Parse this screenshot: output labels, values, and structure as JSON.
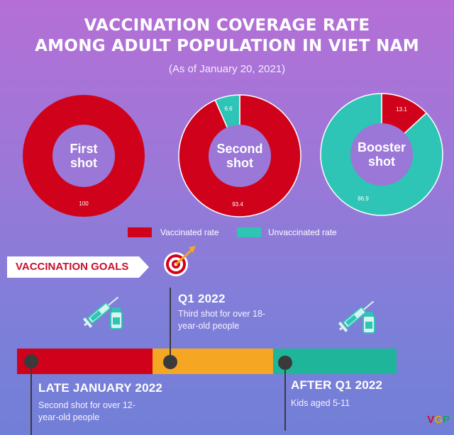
{
  "title_line1": "VACCINATION COVERAGE RATE",
  "title_line2": "AMONG ADULT POPULATION IN VIET NAM",
  "subtitle": "(As of January 20, 2021)",
  "colors": {
    "vaccinated": "#d0021b",
    "unvaccinated": "#2ec4b6",
    "inner": "#9b77d8"
  },
  "chart_data": [
    {
      "type": "pie",
      "center_label": [
        "First",
        "shot"
      ],
      "slices": [
        {
          "name": "Vaccinated rate",
          "value": 100
        }
      ]
    },
    {
      "type": "pie",
      "center_label": [
        "Second",
        "shot"
      ],
      "slices": [
        {
          "name": "Vaccinated rate",
          "value": 93.4
        },
        {
          "name": "Unvaccinated rate",
          "value": 6.6
        }
      ]
    },
    {
      "type": "pie",
      "center_label": [
        "Booster",
        "shot"
      ],
      "slices": [
        {
          "name": "Vaccinated rate",
          "value": 13.1
        },
        {
          "name": "Unvaccinated rate",
          "value": 86.9
        }
      ]
    }
  ],
  "legend": {
    "vaccinated": "Vaccinated rate",
    "unvaccinated": "Unvaccinated rate"
  },
  "goals_banner": "VACCINATION GOALS",
  "timeline": {
    "colors": [
      "#d0021b",
      "#f5a623",
      "#1fb59a"
    ],
    "milestones": [
      {
        "title": "LATE JANUARY 2022",
        "desc_line1": "Second shot for over 12-",
        "desc_line2": "year-old people"
      },
      {
        "title": "Q1 2022",
        "desc_line1": "Third shot for over 18-",
        "desc_line2": "year-old people"
      },
      {
        "title": "AFTER Q1 2022",
        "desc_line1": "Kids aged 5-11",
        "desc_line2": ""
      }
    ]
  },
  "logo": {
    "v": "V",
    "g": "G",
    "p": "P"
  }
}
